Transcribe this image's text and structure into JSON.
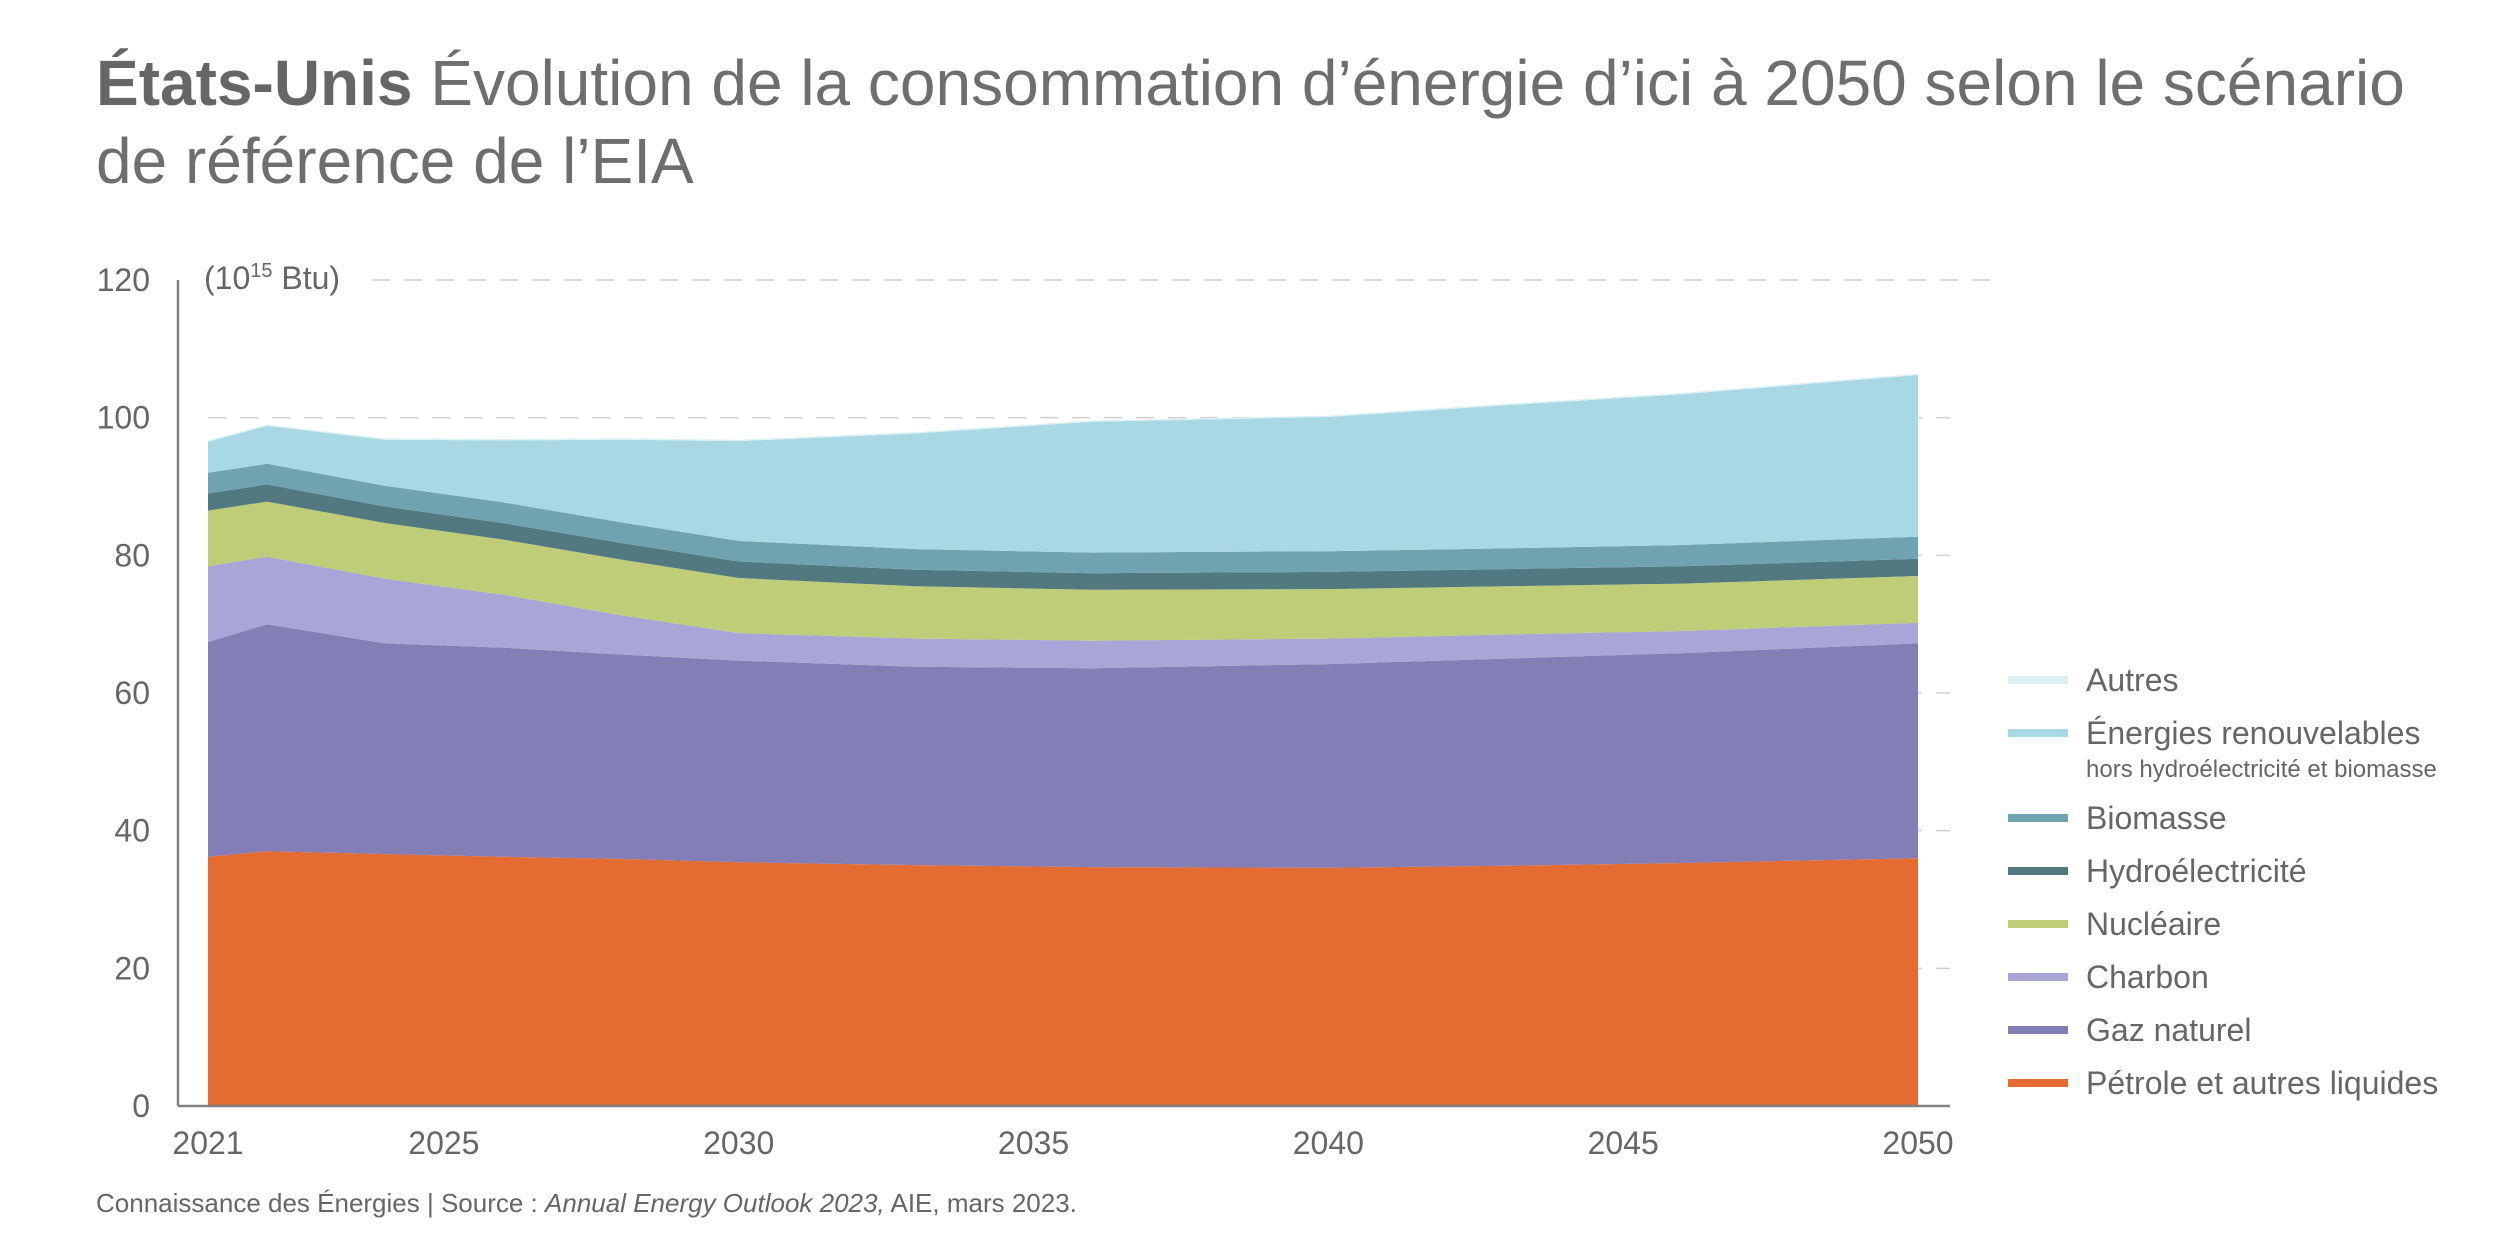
{
  "title": {
    "country": "États-Unis",
    "text": "Évolution de la consommation d’énergie d’ici à 2050 selon le scénario de référence de l’EIA"
  },
  "footer": {
    "prefix": "Connaissance des Énergies | Source : ",
    "reference": "Annual Energy Outlook 2023,",
    "suffix": " AIE, mars 2023."
  },
  "chart_data": {
    "type": "area",
    "stacked": true,
    "unit_label": {
      "base": "(10",
      "exponent": "15",
      "rest": " Btu)"
    },
    "x": [
      2021,
      2022,
      2024,
      2026,
      2028,
      2030,
      2033,
      2036,
      2040,
      2043,
      2046,
      2050
    ],
    "x_ticks": [
      2021,
      2025,
      2030,
      2035,
      2040,
      2045,
      2050
    ],
    "y_ticks": [
      0,
      20,
      40,
      60,
      80,
      100,
      120
    ],
    "ylim": [
      0,
      120
    ],
    "xlim": [
      2021,
      2050
    ],
    "grid": "horizontal-dashed",
    "legend_position": "right",
    "series": [
      {
        "name": "Pétrole et autres liquides",
        "color": "#e46c33",
        "values": [
          36.2,
          37.0,
          36.6,
          36.2,
          35.9,
          35.4,
          35.0,
          34.7,
          34.6,
          34.9,
          35.3,
          36.0
        ]
      },
      {
        "name": "Gaz naturel",
        "color": "#837fb6",
        "values": [
          31.2,
          33.0,
          30.6,
          30.4,
          29.7,
          29.3,
          28.8,
          28.9,
          29.6,
          30.1,
          30.5,
          31.2
        ]
      },
      {
        "name": "Charbon",
        "color": "#a9a5d7",
        "values": [
          11.0,
          9.8,
          9.4,
          7.7,
          5.7,
          4.0,
          4.1,
          4.0,
          3.7,
          3.5,
          3.2,
          3.0
        ]
      },
      {
        "name": "Nucléaire",
        "color": "#bfcc78",
        "values": [
          8.1,
          8.0,
          8.1,
          8.0,
          8.1,
          8.0,
          7.6,
          7.4,
          7.2,
          7.0,
          6.9,
          6.8
        ]
      },
      {
        "name": "Hydroélectricité",
        "color": "#51797f",
        "values": [
          2.5,
          2.5,
          2.4,
          2.4,
          2.4,
          2.4,
          2.4,
          2.4,
          2.5,
          2.5,
          2.5,
          2.5
        ]
      },
      {
        "name": "Biomasse",
        "color": "#6fa3b2",
        "values": [
          3.0,
          3.0,
          3.0,
          3.0,
          3.0,
          3.0,
          3.0,
          3.0,
          3.0,
          3.0,
          3.1,
          3.2
        ]
      },
      {
        "name": "Énergies renouvelables",
        "sublabel": "hors hydroélectricité et biomasse",
        "color": "#a7d8e3",
        "values": [
          4.5,
          5.5,
          6.7,
          9.0,
          12.0,
          14.5,
          16.8,
          19.0,
          19.5,
          20.8,
          21.9,
          23.5
        ]
      },
      {
        "name": "Autres",
        "color": "#dcf0f5",
        "values": [
          0.2,
          0.2,
          0.2,
          0.2,
          0.2,
          0.2,
          0.2,
          0.2,
          0.2,
          0.2,
          0.2,
          0.2
        ]
      }
    ]
  }
}
